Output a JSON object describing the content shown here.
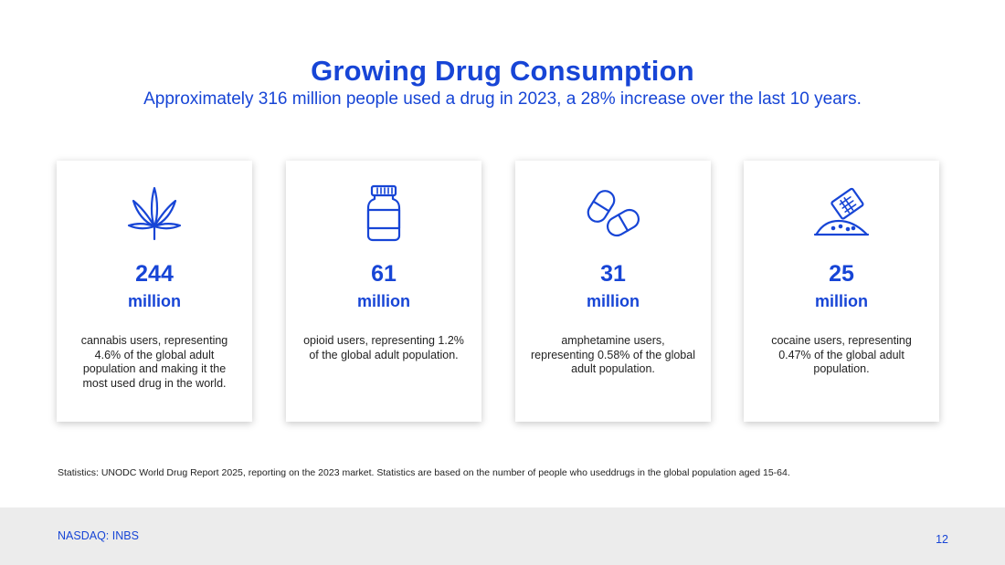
{
  "header": {
    "title": "Growing Drug Consumption",
    "subtitle": "Approximately 316 million people used a drug in 2023, a 28% increase over the last 10 years."
  },
  "cards": [
    {
      "icon": "cannabis-leaf-icon",
      "value": "244",
      "unit": "million",
      "description": "cannabis users, representing 4.6% of the global adult population and making it the most used drug in the world."
    },
    {
      "icon": "pill-bottle-icon",
      "value": "61",
      "unit": "million",
      "description": "opioid users, representing 1.2% of the global adult population."
    },
    {
      "icon": "capsules-icon",
      "value": "31",
      "unit": "million",
      "description": "amphetamine users, representing 0.58% of the global adult population."
    },
    {
      "icon": "powder-bag-icon",
      "value": "25",
      "unit": "million",
      "description": "cocaine users, representing 0.47% of the global adult population."
    }
  ],
  "footnote": "Statistics: UNODC World Drug Report 2025, reporting on the 2023 market. Statistics are based on the number of people who useddrugs in the global population aged 15-64.",
  "footer": {
    "ticker": "NASDAQ: INBS",
    "page_number": "12"
  },
  "colors": {
    "accent": "#1745d6",
    "footer_bg": "#ececec",
    "text": "#222222"
  }
}
